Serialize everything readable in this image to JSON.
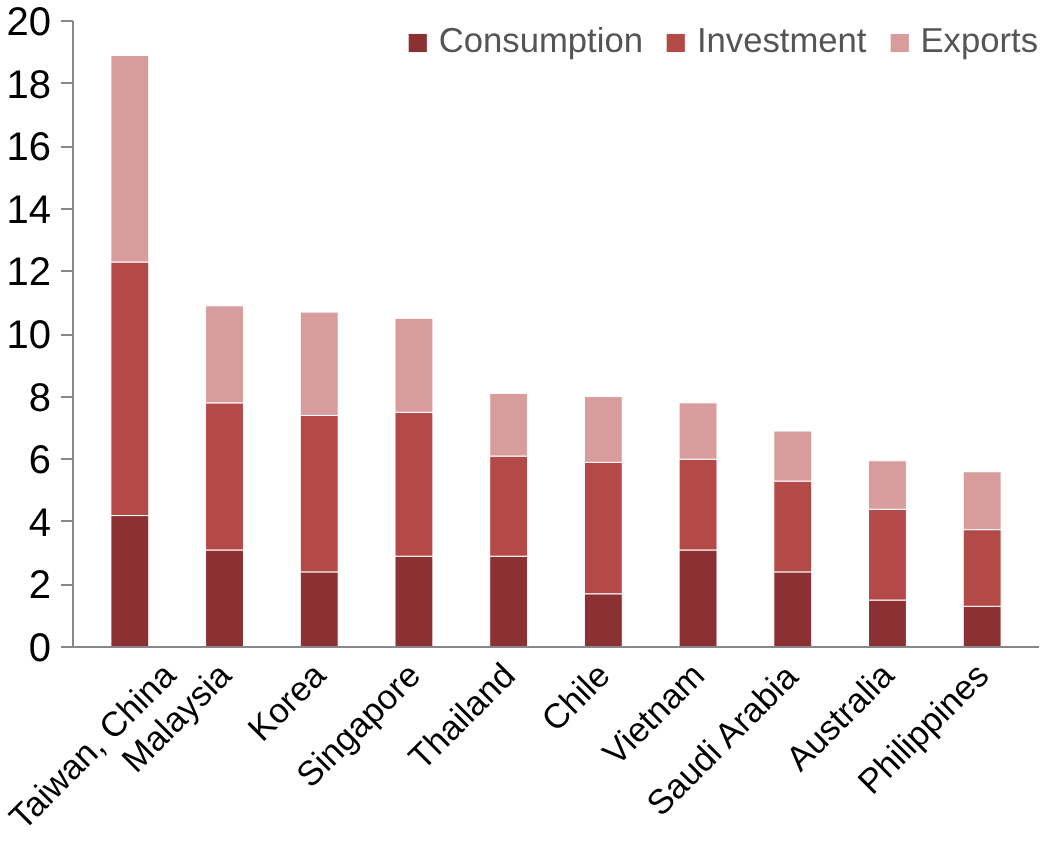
{
  "chart_data": {
    "type": "bar",
    "stacked": true,
    "categories": [
      "Taiwan, China",
      "Malaysia",
      "Korea",
      "Singapore",
      "Thailand",
      "Chile",
      "Vietnam",
      "Saudi Arabia",
      "Australia",
      "Philippines"
    ],
    "series": [
      {
        "name": "Consumption",
        "color": "#8b3133",
        "values": [
          4.2,
          3.1,
          2.4,
          2.9,
          2.9,
          1.7,
          3.1,
          2.4,
          1.5,
          1.3
        ]
      },
      {
        "name": "Investment",
        "color": "#b44a48",
        "values": [
          8.1,
          4.7,
          5.0,
          4.6,
          3.2,
          4.2,
          2.9,
          2.9,
          2.9,
          2.45
        ]
      },
      {
        "name": "Exports",
        "color": "#d89c9c",
        "values": [
          6.6,
          3.1,
          3.3,
          3.0,
          2.0,
          2.1,
          1.8,
          1.6,
          1.55,
          1.85
        ]
      }
    ],
    "ylim": [
      0,
      20
    ],
    "yticks": [
      0,
      2,
      4,
      6,
      8,
      10,
      12,
      14,
      16,
      18,
      20
    ],
    "grid": false,
    "legend": "top"
  }
}
